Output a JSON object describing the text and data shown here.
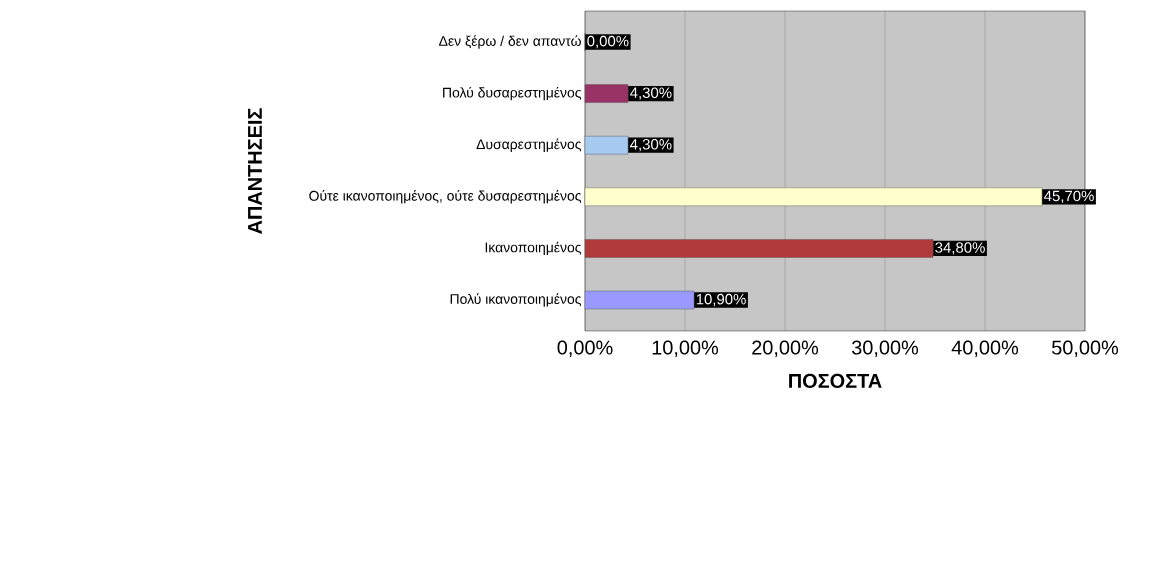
{
  "chart_data": {
    "type": "bar",
    "orientation": "horizontal",
    "xlabel": "ΠΟΣΟΣΤΑ",
    "ylabel": "ΑΠΑΝΤΗΣΕΙΣ",
    "categories": [
      "Δεν ξέρω / δεν απαντώ",
      "Πολύ δυσαρεστημένος",
      "Δυσαρεστημένος",
      "Ούτε ικανοποιημένος, ούτε δυσαρεστημένος",
      "Ικανοποιημένος",
      "Πολύ ικανοποιημένος"
    ],
    "values": [
      0,
      4.3,
      4.3,
      45.7,
      34.8,
      10.9
    ],
    "value_labels": [
      "0,00%",
      "4,30%",
      "4,30%",
      "45,70%",
      "34,80%",
      "10,90%"
    ],
    "colors": [
      "#9999ff",
      "#993366",
      "#a6caf0",
      "#ffffcc",
      "#b03a3a",
      "#9999ff"
    ],
    "xlim": [
      0,
      50
    ],
    "xticks": [
      {
        "value": 0,
        "label": "0,00%"
      },
      {
        "value": 10,
        "label": "10,00%"
      },
      {
        "value": 20,
        "label": "20,00%"
      },
      {
        "value": 30,
        "label": "30,00%"
      },
      {
        "value": 40,
        "label": "40,00%"
      },
      {
        "value": 50,
        "label": "50,00%"
      }
    ],
    "grid": "x"
  }
}
